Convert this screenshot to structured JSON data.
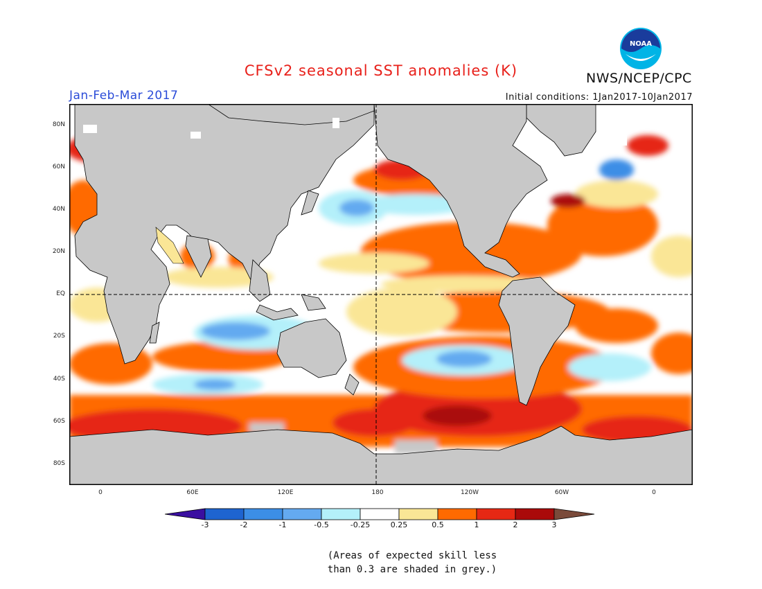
{
  "header": {
    "title": "CFSv2 seasonal SST anomalies (K)",
    "org": "NWS/NCEP/CPC",
    "logo_text": "NOAA",
    "season": "Jan-Feb-Mar 2017",
    "initial_conditions": "Initial conditions: 1Jan2017-10Jan2017"
  },
  "map": {
    "lat_labels": [
      "80N",
      "60N",
      "40N",
      "20N",
      "EQ",
      "20S",
      "40S",
      "60S",
      "80S"
    ],
    "lon_labels": [
      "0",
      "60E",
      "120E",
      "180",
      "120W",
      "60W",
      "0"
    ],
    "land_color": "#c8c8c8",
    "ocean_base_color": "#ffffff"
  },
  "colorbar": {
    "ticks": [
      "-3",
      "-2",
      "-1",
      "-0.5",
      "-0.25",
      "0.25",
      "0.5",
      "1",
      "2",
      "3"
    ],
    "colors": [
      "#3a0fa0",
      "#1e64d0",
      "#3c8ee6",
      "#64aaf0",
      "#b4f0fa",
      "#ffffff",
      "#fae696",
      "#ff6a00",
      "#e62814",
      "#aa0a0a",
      "#7a4a3a"
    ]
  },
  "note": {
    "line1": "(Areas of expected skill less",
    "line2": "than 0.3 are shaded in grey.)"
  }
}
